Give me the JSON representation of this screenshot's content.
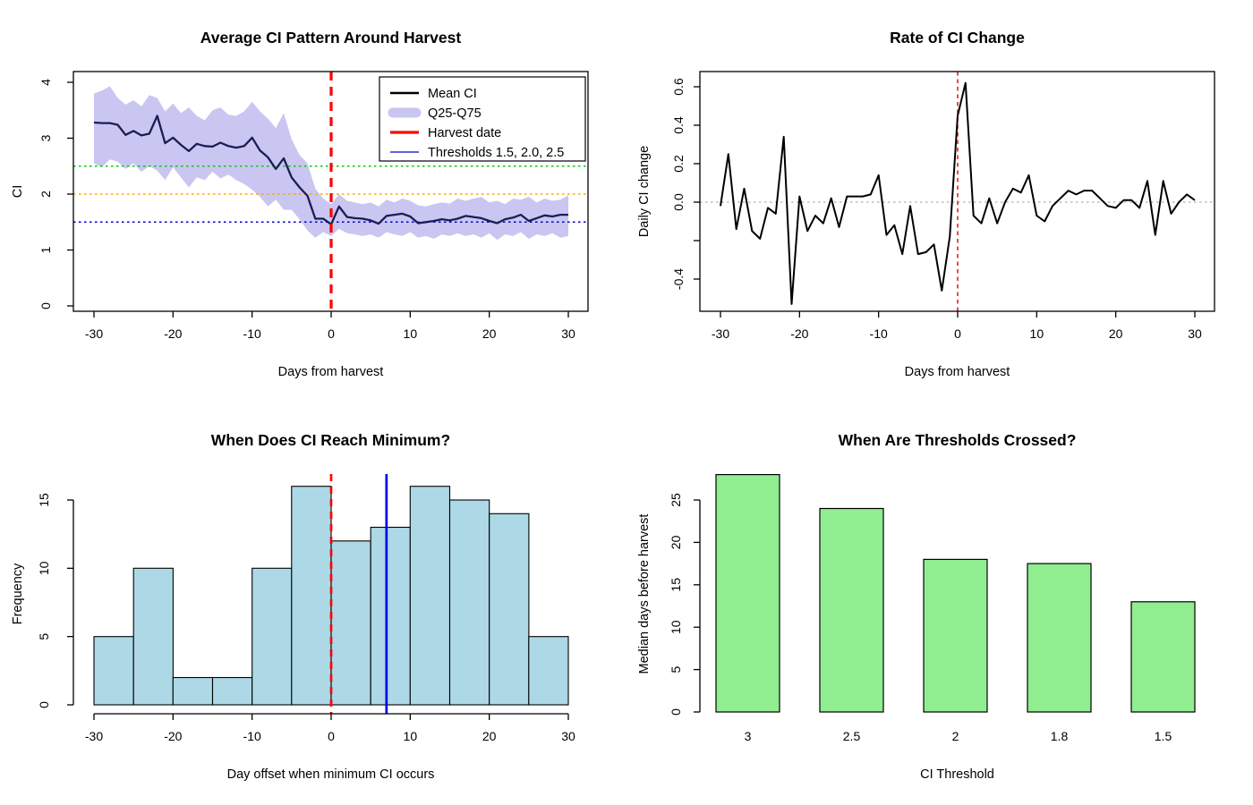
{
  "figure": {
    "background": "#ffffff"
  },
  "chart_data": [
    {
      "id": "avg_ci_pattern",
      "type": "line",
      "title": "Average CI Pattern Around Harvest",
      "xlabel": "Days from harvest",
      "ylabel": "CI",
      "x_range": [
        -30,
        30
      ],
      "x_step": 1,
      "x_ticks": [
        -30,
        -20,
        -10,
        0,
        10,
        20,
        30
      ],
      "x_tick_labels": [
        "-30",
        "-20",
        "-10",
        "0",
        "10",
        "20",
        "30"
      ],
      "y_ticks": [
        0,
        1,
        2,
        3,
        4
      ],
      "y_tick_labels": [
        "0",
        "1",
        "2",
        "3",
        "4"
      ],
      "ylim": [
        -0.17,
        4.19
      ],
      "series": [
        {
          "name": "Mean CI",
          "kind": "line",
          "color": "#1C1C55",
          "values": [
            3.28,
            3.27,
            3.27,
            3.24,
            3.06,
            3.13,
            3.05,
            3.08,
            3.4,
            2.91,
            3.01,
            2.88,
            2.77,
            2.9,
            2.86,
            2.85,
            2.92,
            2.86,
            2.83,
            2.86,
            3.01,
            2.78,
            2.66,
            2.45,
            2.64,
            2.3,
            2.12,
            1.97,
            1.56,
            1.56,
            1.46,
            1.78,
            1.59,
            1.57,
            1.56,
            1.53,
            1.47,
            1.61,
            1.63,
            1.65,
            1.6,
            1.48,
            1.5,
            1.52,
            1.55,
            1.53,
            1.56,
            1.61,
            1.59,
            1.57,
            1.52,
            1.48,
            1.55,
            1.58,
            1.63,
            1.52,
            1.57,
            1.62,
            1.6,
            1.63,
            1.63
          ]
        },
        {
          "name": "Q25-Q75",
          "kind": "ribbon",
          "color": "#C9C6F1",
          "upper": [
            3.8,
            3.85,
            3.93,
            3.72,
            3.6,
            3.68,
            3.57,
            3.77,
            3.72,
            3.48,
            3.62,
            3.45,
            3.55,
            3.4,
            3.32,
            3.5,
            3.55,
            3.42,
            3.4,
            3.48,
            3.65,
            3.48,
            3.35,
            3.18,
            3.45,
            2.98,
            2.7,
            2.55,
            2.1,
            1.92,
            1.82,
            2.0,
            1.88,
            1.85,
            1.82,
            1.85,
            1.78,
            1.9,
            1.85,
            1.92,
            1.88,
            1.8,
            1.78,
            1.82,
            1.85,
            1.83,
            1.92,
            1.88,
            1.92,
            1.95,
            1.85,
            1.88,
            1.82,
            1.92,
            1.9,
            1.95,
            1.85,
            1.92,
            1.88,
            1.9,
            1.98
          ],
          "lower": [
            2.55,
            2.48,
            2.62,
            2.58,
            2.45,
            2.55,
            2.4,
            2.5,
            2.42,
            2.25,
            2.48,
            2.3,
            2.12,
            2.3,
            2.25,
            2.4,
            2.28,
            2.35,
            2.25,
            2.18,
            2.08,
            1.95,
            1.78,
            1.9,
            1.72,
            1.72,
            1.55,
            1.35,
            1.22,
            1.32,
            1.25,
            1.38,
            1.3,
            1.28,
            1.25,
            1.28,
            1.22,
            1.32,
            1.28,
            1.25,
            1.32,
            1.22,
            1.25,
            1.2,
            1.28,
            1.25,
            1.3,
            1.25,
            1.28,
            1.22,
            1.3,
            1.18,
            1.28,
            1.25,
            1.32,
            1.2,
            1.28,
            1.25,
            1.3,
            1.22,
            1.25
          ]
        }
      ],
      "hlines": [
        {
          "y": 2.5,
          "color": "#00CC00",
          "style": "dotted"
        },
        {
          "y": 2.0,
          "color": "#FFA500",
          "style": "dotted"
        },
        {
          "y": 1.5,
          "color": "#0000CD",
          "style": "dotted"
        }
      ],
      "vlines": [
        {
          "x": 0,
          "color": "#FF0000",
          "style": "dashed",
          "label": "Harvest date"
        }
      ],
      "legend": {
        "position": "top-right",
        "items": [
          {
            "label": "Mean CI",
            "kind": "line",
            "color": "#000000"
          },
          {
            "label": "Q25-Q75",
            "kind": "band",
            "color": "#C9C6F1"
          },
          {
            "label": "Harvest date",
            "kind": "line-thick",
            "color": "#FF0000"
          },
          {
            "label": "Thresholds 1.5, 2.0, 2.5",
            "kind": "line-thin",
            "color": "#0000CD"
          }
        ]
      }
    },
    {
      "id": "rate_of_ci_change",
      "type": "line",
      "title": "Rate of CI Change",
      "xlabel": "Days from harvest",
      "ylabel": "Daily CI change",
      "x_range": [
        -30,
        30
      ],
      "x_step": 1,
      "x_ticks": [
        -30,
        -20,
        -10,
        0,
        10,
        20,
        30
      ],
      "x_tick_labels": [
        "-30",
        "-20",
        "-10",
        "0",
        "10",
        "20",
        "30"
      ],
      "y_ticks": [
        0.6,
        0.4,
        0.2,
        0.0,
        -0.2,
        -0.4
      ],
      "y_tick_labels": [
        "0.6",
        "0.4",
        "0.2",
        "0.0",
        "",
        "-0.4"
      ],
      "ylim": [
        -0.57,
        0.68
      ],
      "series": [
        {
          "name": "Daily CI change",
          "kind": "line",
          "color": "#000000",
          "values": [
            -0.02,
            0.25,
            -0.14,
            0.07,
            -0.15,
            -0.19,
            -0.03,
            -0.06,
            0.34,
            -0.53,
            0.03,
            -0.15,
            -0.07,
            -0.11,
            0.02,
            -0.13,
            0.03,
            0.03,
            0.03,
            0.04,
            0.14,
            -0.17,
            -0.12,
            -0.27,
            -0.02,
            -0.27,
            -0.26,
            -0.22,
            -0.46,
            -0.18,
            0.45,
            0.62,
            -0.07,
            -0.11,
            0.02,
            -0.11,
            0.0,
            0.07,
            0.05,
            0.14,
            -0.07,
            -0.1,
            -0.02,
            0.02,
            0.06,
            0.04,
            0.06,
            0.06,
            0.02,
            -0.02,
            -0.03,
            0.01,
            0.01,
            -0.03,
            0.11,
            -0.17,
            0.11,
            -0.06,
            0.0,
            0.04,
            0.01
          ]
        }
      ],
      "hlines": [
        {
          "y": 0,
          "color": "#BEBEBE",
          "style": "dotted"
        }
      ],
      "vlines": [
        {
          "x": 0,
          "color": "#DD0000",
          "style": "dashed"
        }
      ]
    },
    {
      "id": "min_ci_histogram",
      "type": "histogram",
      "title": "When Does CI Reach Minimum?",
      "xlabel": "Day offset when minimum CI occurs",
      "ylabel": "Frequency",
      "bin_edges": [
        -30,
        -25,
        -20,
        -15,
        -10,
        -5,
        0,
        5,
        10,
        15,
        20,
        25,
        30
      ],
      "counts": [
        5,
        10,
        2,
        2,
        10,
        16,
        12,
        13,
        16,
        15,
        14,
        5
      ],
      "bar_fill": "#ADD8E6",
      "bar_stroke": "#000000",
      "x_ticks": [
        -30,
        -20,
        -10,
        0,
        10,
        20,
        30
      ],
      "x_tick_labels": [
        "-30",
        "-20",
        "-10",
        "0",
        "10",
        "20",
        "30"
      ],
      "y_ticks": [
        0,
        5,
        10,
        15
      ],
      "y_tick_labels": [
        "0",
        "5",
        "10",
        "15"
      ],
      "vlines": [
        {
          "x": 0,
          "color": "#FF0000",
          "style": "dashed"
        },
        {
          "x": 7,
          "color": "#0000EE",
          "style": "solid"
        }
      ]
    },
    {
      "id": "threshold_crossing",
      "type": "bar",
      "title": "When Are Thresholds Crossed?",
      "xlabel": "CI Threshold",
      "ylabel": "Median days before harvest",
      "categories": [
        "3",
        "2.5",
        "2",
        "1.8",
        "1.5"
      ],
      "values": [
        28,
        24,
        18,
        17.5,
        13
      ],
      "bar_fill": "#90EE90",
      "bar_stroke": "#000000",
      "y_ticks": [
        0,
        5,
        10,
        15,
        20,
        25
      ],
      "y_tick_labels": [
        "0",
        "5",
        "10",
        "15",
        "20",
        "25"
      ]
    }
  ]
}
